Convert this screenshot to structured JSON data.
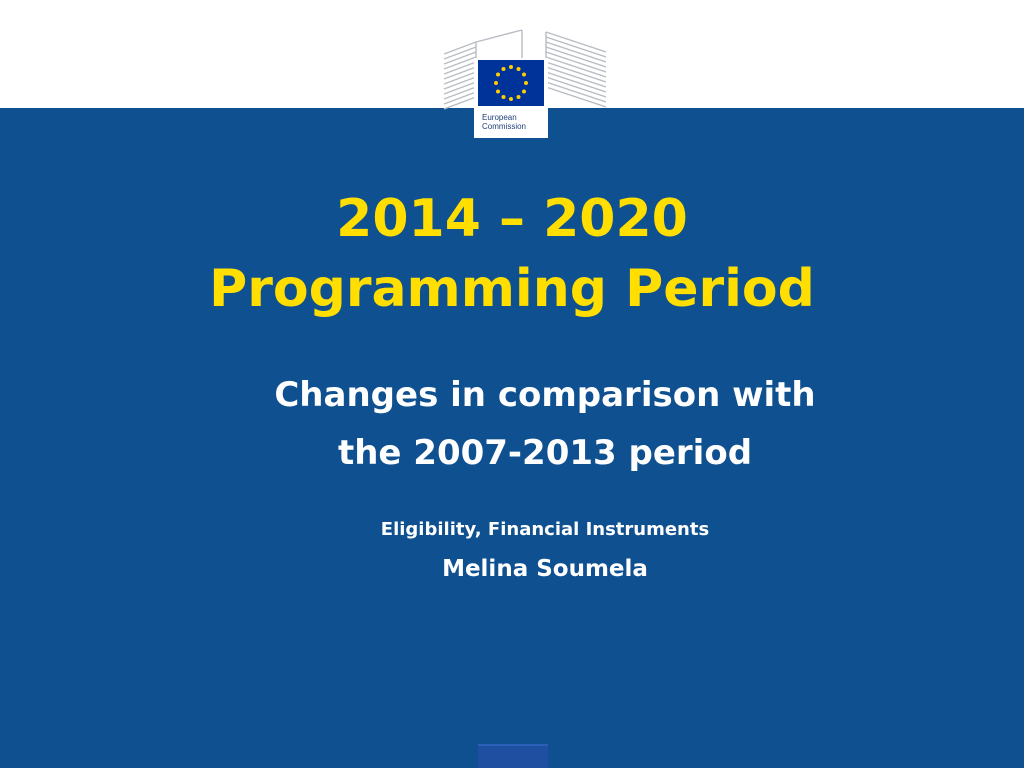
{
  "header": {
    "logo_line1": "European",
    "logo_line2": "Commission"
  },
  "title": {
    "line1": "2014 – 2020",
    "line2": "Programming Period"
  },
  "subtitle": {
    "line1": "Changes in comparison with",
    "line2": "the 2007-2013 period"
  },
  "topic": "Eligibility, Financial Instruments",
  "presenter": "Melina Soumela",
  "colors": {
    "background_blue": "#0f5090",
    "title_yellow": "#ffde00",
    "text_white": "#ffffff",
    "eu_flag_blue": "#003399",
    "eu_star_yellow": "#ffcc00"
  },
  "icons": {
    "logo": "european-commission-logo",
    "flag": "eu-flag-icon"
  }
}
